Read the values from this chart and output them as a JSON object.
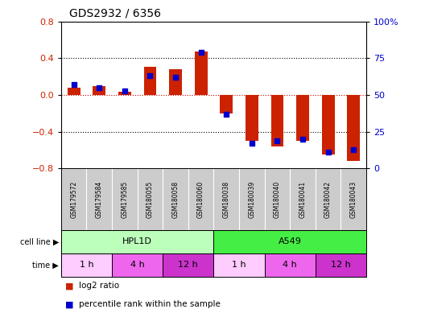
{
  "title": "GDS2932 / 6356",
  "samples": [
    "GSM179572",
    "GSM179584",
    "GSM179585",
    "GSM180055",
    "GSM180058",
    "GSM180060",
    "GSM180038",
    "GSM180039",
    "GSM180040",
    "GSM180041",
    "GSM180042",
    "GSM180043"
  ],
  "log2_ratio": [
    0.08,
    0.1,
    0.04,
    0.31,
    0.28,
    0.47,
    -0.2,
    -0.5,
    -0.56,
    -0.5,
    -0.65,
    -0.72
  ],
  "percentile_rank": [
    57,
    55,
    53,
    63,
    62,
    79,
    37,
    17,
    19,
    20,
    11,
    13
  ],
  "cell_lines": [
    {
      "label": "HPL1D",
      "start": 0,
      "end": 6,
      "color": "#bbffbb"
    },
    {
      "label": "A549",
      "start": 6,
      "end": 12,
      "color": "#44ee44"
    }
  ],
  "time_groups": [
    {
      "label": "1 h",
      "start": 0,
      "end": 2,
      "color": "#ffccff"
    },
    {
      "label": "4 h",
      "start": 2,
      "end": 4,
      "color": "#ee66ee"
    },
    {
      "label": "12 h",
      "start": 4,
      "end": 6,
      "color": "#cc33cc"
    },
    {
      "label": "1 h",
      "start": 6,
      "end": 8,
      "color": "#ffccff"
    },
    {
      "label": "4 h",
      "start": 8,
      "end": 10,
      "color": "#ee66ee"
    },
    {
      "label": "12 h",
      "start": 10,
      "end": 12,
      "color": "#cc33cc"
    }
  ],
  "ylim_left": [
    -0.8,
    0.8
  ],
  "ylim_right": [
    0,
    100
  ],
  "yticks_left": [
    -0.8,
    -0.4,
    0.0,
    0.4,
    0.8
  ],
  "yticks_right": [
    0,
    25,
    50,
    75,
    100
  ],
  "bar_color": "#cc2200",
  "dot_color": "#0000cc",
  "bg_color": "#ffffff",
  "zero_line_color": "#cc0000",
  "legend_items": [
    "log2 ratio",
    "percentile rank within the sample"
  ]
}
